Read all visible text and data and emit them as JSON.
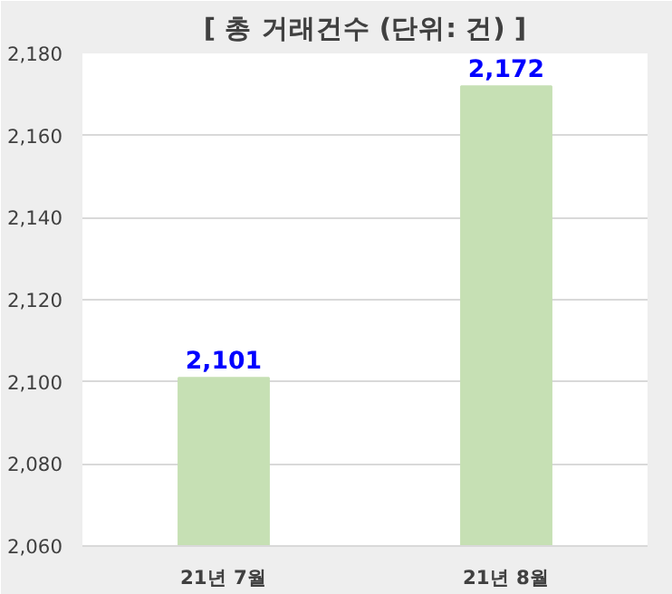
{
  "chart_data": {
    "type": "bar",
    "title": "[ 총 거래건수 (단위: 건) ]",
    "categories": [
      "21년 7월",
      "21년 8월"
    ],
    "values": [
      2101,
      2172
    ],
    "color": "#c6e0b4",
    "value_labels": [
      "2,101",
      "2,172"
    ],
    "ylim": [
      2060,
      2180
    ],
    "yticks": [
      {
        "value": 2060,
        "label": "2,060"
      },
      {
        "value": 2080,
        "label": "2,080"
      },
      {
        "value": 2100,
        "label": "2,100"
      },
      {
        "value": 2120,
        "label": "2,120"
      },
      {
        "value": 2140,
        "label": "2,140"
      },
      {
        "value": 2160,
        "label": "2,160"
      },
      {
        "value": 2180,
        "label": "2,180"
      }
    ],
    "grid": "y"
  }
}
